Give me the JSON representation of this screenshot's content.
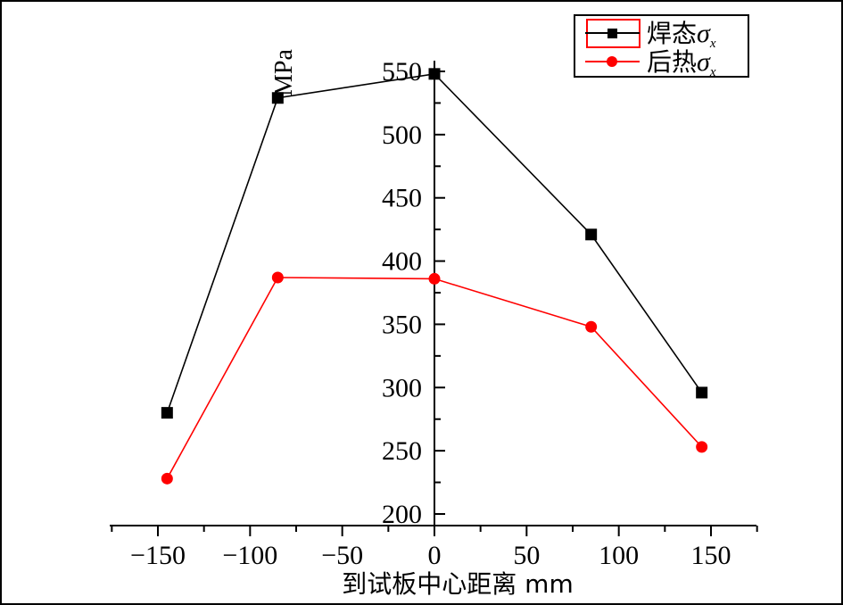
{
  "chart_data": {
    "type": "line",
    "xlabel": "到试板中心距离 mm",
    "ylabel": "MPa",
    "xlim": [
      -175,
      175
    ],
    "ylim": [
      200,
      560
    ],
    "x_ticks": [
      -150,
      -100,
      -50,
      0,
      50,
      100,
      150
    ],
    "x_tick_labels": [
      "−150",
      "−100",
      "−50",
      "0",
      "50",
      "100",
      "150"
    ],
    "y_ticks": [
      200,
      250,
      300,
      350,
      400,
      450,
      500,
      550
    ],
    "y_tick_labels": [
      "200",
      "250",
      "300",
      "350",
      "400",
      "450",
      "500",
      "550"
    ],
    "legend_position": "top-right",
    "grid": false,
    "series": [
      {
        "name": "焊态σx",
        "name_prefix": "焊态",
        "name_symbol": "σ",
        "name_subscript": "x",
        "color": "#000000",
        "marker": "square",
        "x": [
          -145,
          -85,
          0,
          85,
          145
        ],
        "y": [
          280,
          529,
          548,
          421,
          296
        ]
      },
      {
        "name": "后热σx",
        "name_prefix": "后热",
        "name_symbol": "σ",
        "name_subscript": "x",
        "color": "#ff0000",
        "marker": "circle",
        "x": [
          -145,
          -85,
          0,
          85,
          145
        ],
        "y": [
          228,
          387,
          386,
          348,
          253
        ]
      }
    ]
  }
}
